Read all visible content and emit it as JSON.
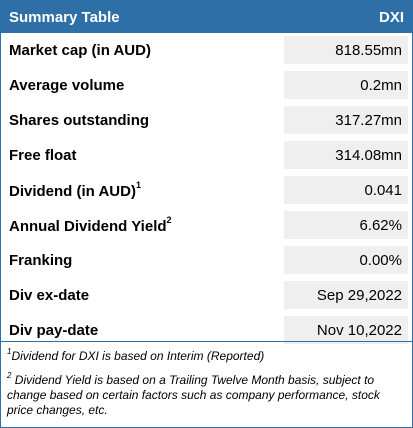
{
  "header": {
    "title": "Summary Table",
    "code": "DXI",
    "color": "#2e6fa7"
  },
  "rows": [
    {
      "label": "Market cap (in AUD)",
      "sup": "",
      "value": "818.55mn"
    },
    {
      "label": "Average volume",
      "sup": "",
      "value": "0.2mn"
    },
    {
      "label": "Shares outstanding",
      "sup": "",
      "value": "317.27mn"
    },
    {
      "label": "Free float",
      "sup": "",
      "value": "314.08mn"
    },
    {
      "label": "Dividend (in AUD)",
      "sup": "1",
      "value": "0.041"
    },
    {
      "label": "Annual Dividend Yield",
      "sup": "2",
      "value": "6.62%"
    },
    {
      "label": "Franking",
      "sup": "",
      "value": "0.00%"
    },
    {
      "label": "Div ex-date",
      "sup": "",
      "value": "Sep 29,2022"
    },
    {
      "label": "Div pay-date",
      "sup": "",
      "value": "Nov 10,2022"
    }
  ],
  "footnotes": [
    {
      "mark": "1",
      "text": "Dividend for DXI is based on Interim (Reported)"
    },
    {
      "mark": "2",
      "text": " Dividend Yield is based on a Trailing Twelve Month basis, subject to change based on certain factors such as company performance, stock price changes, etc."
    }
  ]
}
